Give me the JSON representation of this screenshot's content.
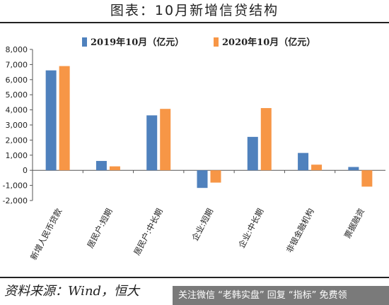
{
  "header": {
    "title": "图表：10月新增信贷结构"
  },
  "footer": {
    "source": "资料来源：Wind，恒大",
    "watermark": "关注微信 “老韩实盘” 回复 “指标” 免费领"
  },
  "chart_data": {
    "type": "bar",
    "categories": [
      "新增人民币贷款",
      "居民户:短期",
      "居民户:中长期",
      "企业:短期",
      "企业:中长期",
      "非银金融机构",
      "票据融资"
    ],
    "series": [
      {
        "name": "2019年10月（亿元）",
        "color": "#4f81bd",
        "values": [
          6613,
          619,
          3636,
          -1167,
          2212,
          1148,
          220
        ]
      },
      {
        "name": "2020年10月（亿元）",
        "color": "#f79646",
        "values": [
          6898,
          261,
          4065,
          -814,
          4118,
          373,
          -1082
        ]
      }
    ],
    "ylim": [
      -2000,
      8000
    ],
    "yticks": [
      -2000,
      -1000,
      0,
      1000,
      2000,
      3000,
      4000,
      5000,
      6000,
      7000,
      8000
    ],
    "ytick_labels": [
      "-2,000",
      "-1,000",
      "0",
      "1,000",
      "2,000",
      "3,000",
      "4,000",
      "5,000",
      "6,000",
      "7,000",
      "8,000"
    ],
    "legend": "top",
    "grid": false
  }
}
